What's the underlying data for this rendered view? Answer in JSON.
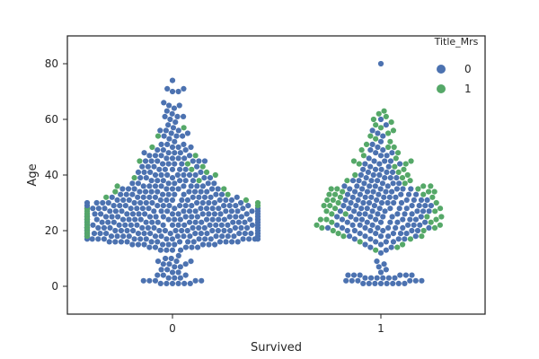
{
  "chart_data": {
    "type": "scatter",
    "subtype": "swarm",
    "xlabel": "Survived",
    "ylabel": "Age",
    "categories": [
      "0",
      "1"
    ],
    "ylim": [
      -10,
      90
    ],
    "yticks": [
      0,
      20,
      40,
      60,
      80
    ],
    "grid": false,
    "legend": {
      "title": "Title_Mrs",
      "placement": "top-right",
      "entries": [
        {
          "name": "0",
          "color": "#4c72b0"
        },
        {
          "name": "1",
          "color": "#55a868"
        }
      ]
    },
    "colors": {
      "0": "#4c72b0",
      "1": "#55a868"
    },
    "series": [
      {
        "category": "0",
        "title_mrs": "0",
        "values": [
          74,
          71,
          71,
          70,
          70,
          66,
          65,
          65,
          64,
          63,
          62,
          61,
          61,
          61,
          60,
          59,
          58,
          57,
          56,
          56,
          56,
          55,
          55,
          54,
          54,
          54,
          53,
          52,
          51,
          51,
          51,
          50,
          50,
          50,
          49,
          49,
          49,
          48,
          48,
          48,
          48,
          47,
          47,
          47,
          47,
          46,
          46,
          46,
          46,
          45,
          45,
          45,
          45,
          45,
          45,
          44,
          44,
          44,
          44,
          43,
          43,
          43,
          43,
          42,
          42,
          42,
          42,
          42,
          41,
          41,
          41,
          41,
          40,
          40,
          40,
          40,
          40,
          40,
          40,
          39,
          39,
          39,
          39,
          39,
          38,
          38,
          38,
          38,
          38,
          38,
          37,
          37,
          37,
          37,
          37,
          37,
          36,
          36,
          36,
          36,
          36,
          36,
          36,
          36,
          35,
          35,
          35,
          35,
          35,
          35,
          35,
          35,
          34,
          34,
          34,
          34,
          34,
          34,
          34,
          34,
          33,
          33,
          33,
          33,
          33,
          33,
          33,
          33,
          33,
          32,
          32,
          32,
          32,
          32,
          32,
          32,
          32,
          32,
          32,
          31,
          31,
          31,
          31,
          31,
          31,
          31,
          31,
          31,
          31,
          31,
          30,
          30,
          30,
          30,
          30,
          30,
          30,
          30,
          30,
          30,
          30,
          30,
          30,
          29,
          29,
          29,
          29,
          29,
          29,
          29,
          29,
          29,
          29,
          29,
          29,
          29,
          29,
          28,
          28,
          28,
          28,
          28,
          28,
          28,
          28,
          28,
          28,
          28,
          28,
          28,
          28,
          28,
          28,
          27,
          27,
          27,
          27,
          27,
          27,
          27,
          27,
          27,
          27,
          27,
          27,
          27,
          27,
          27,
          26,
          26,
          26,
          26,
          26,
          26,
          26,
          26,
          26,
          26,
          26,
          26,
          26,
          26,
          26,
          26,
          25,
          25,
          25,
          25,
          25,
          25,
          25,
          25,
          25,
          25,
          25,
          25,
          25,
          25,
          25,
          25,
          25,
          24,
          24,
          24,
          24,
          24,
          24,
          24,
          24,
          24,
          24,
          24,
          24,
          24,
          24,
          24,
          24,
          24,
          23,
          23,
          23,
          23,
          23,
          23,
          23,
          23,
          23,
          23,
          23,
          23,
          23,
          23,
          23,
          23,
          22,
          22,
          22,
          22,
          22,
          22,
          22,
          22,
          22,
          22,
          22,
          22,
          22,
          22,
          22,
          22,
          22,
          21,
          21,
          21,
          21,
          21,
          21,
          21,
          21,
          21,
          21,
          21,
          21,
          21,
          21,
          21,
          21,
          21,
          21,
          20,
          20,
          20,
          20,
          20,
          20,
          20,
          20,
          20,
          20,
          20,
          20,
          20,
          20,
          20,
          20,
          20,
          20,
          19,
          19,
          19,
          19,
          19,
          19,
          19,
          19,
          19,
          19,
          19,
          19,
          19,
          19,
          19,
          19,
          19,
          18,
          18,
          18,
          18,
          18,
          18,
          18,
          18,
          18,
          18,
          18,
          18,
          18,
          18,
          18,
          18,
          18,
          18,
          17,
          17,
          17,
          17,
          17,
          17,
          17,
          17,
          17,
          17,
          17,
          17,
          17,
          17,
          17,
          17,
          16,
          16,
          16,
          16,
          16,
          16,
          16,
          16,
          16,
          16,
          16,
          16,
          16,
          15,
          15,
          15,
          15,
          15,
          15,
          15,
          15,
          15,
          14,
          14,
          14,
          14,
          14,
          13,
          13,
          13,
          13,
          11,
          10,
          10,
          9,
          9,
          9,
          8,
          8,
          8,
          7,
          7,
          6,
          6,
          5,
          5,
          4,
          4,
          4,
          3,
          3,
          3,
          2,
          2,
          2,
          2,
          2,
          1,
          1,
          1,
          1,
          1,
          1
        ]
      },
      {
        "category": "0",
        "title_mrs": "1",
        "values": [
          57,
          54,
          50,
          47,
          45,
          44,
          43,
          42,
          41,
          40,
          39,
          38,
          36,
          35,
          34,
          33,
          32,
          31,
          30,
          29,
          28,
          28,
          27,
          26,
          25,
          24,
          23,
          22,
          22,
          21,
          20,
          19,
          18
        ]
      },
      {
        "category": "1",
        "title_mrs": "0",
        "values": [
          80,
          60,
          58,
          56,
          55,
          54,
          52,
          51,
          50,
          49,
          49,
          48,
          48,
          47,
          47,
          46,
          45,
          45,
          45,
          44,
          44,
          44,
          43,
          43,
          42,
          42,
          42,
          41,
          41,
          41,
          40,
          40,
          40,
          39,
          39,
          39,
          39,
          38,
          38,
          38,
          38,
          37,
          37,
          37,
          37,
          36,
          36,
          36,
          36,
          36,
          35,
          35,
          35,
          35,
          35,
          35,
          34,
          34,
          34,
          34,
          34,
          33,
          33,
          33,
          33,
          33,
          33,
          32,
          32,
          32,
          32,
          32,
          32,
          31,
          31,
          31,
          31,
          31,
          31,
          31,
          30,
          30,
          30,
          30,
          30,
          30,
          30,
          29,
          29,
          29,
          29,
          29,
          29,
          29,
          28,
          28,
          28,
          28,
          28,
          28,
          28,
          27,
          27,
          27,
          27,
          27,
          27,
          27,
          26,
          26,
          26,
          26,
          26,
          26,
          25,
          25,
          25,
          25,
          25,
          25,
          24,
          24,
          24,
          24,
          24,
          24,
          24,
          23,
          23,
          23,
          23,
          23,
          23,
          22,
          22,
          22,
          22,
          22,
          22,
          22,
          21,
          21,
          21,
          21,
          21,
          21,
          21,
          21,
          20,
          20,
          20,
          20,
          20,
          20,
          19,
          19,
          19,
          19,
          19,
          18,
          18,
          18,
          18,
          18,
          17,
          17,
          17,
          17,
          16,
          16,
          16,
          15,
          15,
          14,
          14,
          13,
          12,
          9,
          8,
          7,
          6,
          5,
          4,
          4,
          4,
          4,
          4,
          4,
          3,
          3,
          3,
          3,
          3,
          3,
          2,
          2,
          2,
          2,
          2,
          2,
          1,
          1,
          1,
          1,
          1,
          1,
          1,
          1
        ]
      },
      {
        "category": "1",
        "title_mrs": "1",
        "values": [
          63,
          62,
          61,
          60,
          59,
          58,
          57,
          56,
          55,
          54,
          53,
          52,
          51,
          50,
          50,
          49,
          48,
          47,
          46,
          45,
          45,
          44,
          44,
          43,
          42,
          41,
          40,
          40,
          39,
          38,
          38,
          37,
          36,
          36,
          35,
          35,
          35,
          34,
          34,
          34,
          33,
          33,
          33,
          32,
          32,
          31,
          31,
          30,
          30,
          29,
          29,
          28,
          28,
          27,
          27,
          26,
          26,
          25,
          25,
          24,
          24,
          24,
          23,
          23,
          22,
          22,
          21,
          21,
          20,
          20,
          19,
          18,
          18,
          17,
          16,
          15,
          14,
          13
        ]
      }
    ]
  }
}
